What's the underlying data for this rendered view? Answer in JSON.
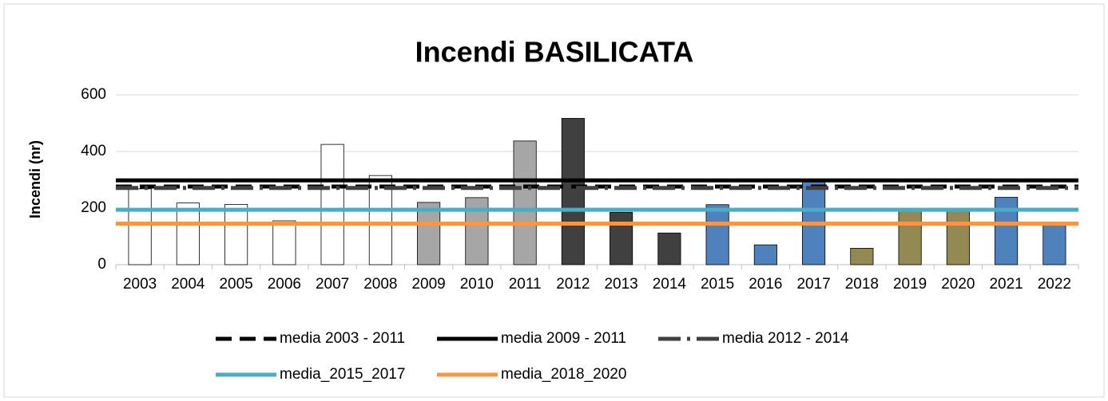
{
  "chart_data": {
    "type": "bar",
    "title": "Incendi BASILICATA",
    "y_label": "Incendi (nr)",
    "categories": [
      "2003",
      "2004",
      "2005",
      "2006",
      "2007",
      "2008",
      "2009",
      "2010",
      "2011",
      "2012",
      "2013",
      "2014",
      "2015",
      "2016",
      "2017",
      "2018",
      "2019",
      "2020",
      "2021",
      "2022"
    ],
    "values": [
      268,
      218,
      213,
      155,
      425,
      315,
      220,
      237,
      437,
      517,
      185,
      112,
      212,
      70,
      300,
      58,
      190,
      190,
      238,
      148
    ],
    "colors": [
      "#ffffff",
      "#ffffff",
      "#ffffff",
      "#ffffff",
      "#ffffff",
      "#ffffff",
      "#a6a6a6",
      "#a6a6a6",
      "#a6a6a6",
      "#404040",
      "#404040",
      "#404040",
      "#4f81bd",
      "#4f81bd",
      "#4f81bd",
      "#938953",
      "#938953",
      "#938953",
      "#4f81bd",
      "#4f81bd"
    ],
    "lines": [
      {
        "name": "media 2003 - 2011",
        "color": "#000000",
        "value": 276,
        "dash": "dashed"
      },
      {
        "name": "media 2009 - 2011",
        "color": "#000000",
        "value": 298,
        "dash": "solid"
      },
      {
        "name": "media 2012 - 2014",
        "color": "#404040",
        "value": 271,
        "dash": "dash-dot"
      },
      {
        "name": "media_2015_2017",
        "color": "#4bacc6",
        "value": 194,
        "dash": "solid"
      },
      {
        "name": "media_2018_2020",
        "color": "#f79646",
        "value": 145,
        "dash": "solid"
      }
    ],
    "ylim": [
      0,
      600
    ],
    "yticks": [
      0,
      200,
      400,
      600
    ],
    "grid": true,
    "legend": "bottom"
  }
}
